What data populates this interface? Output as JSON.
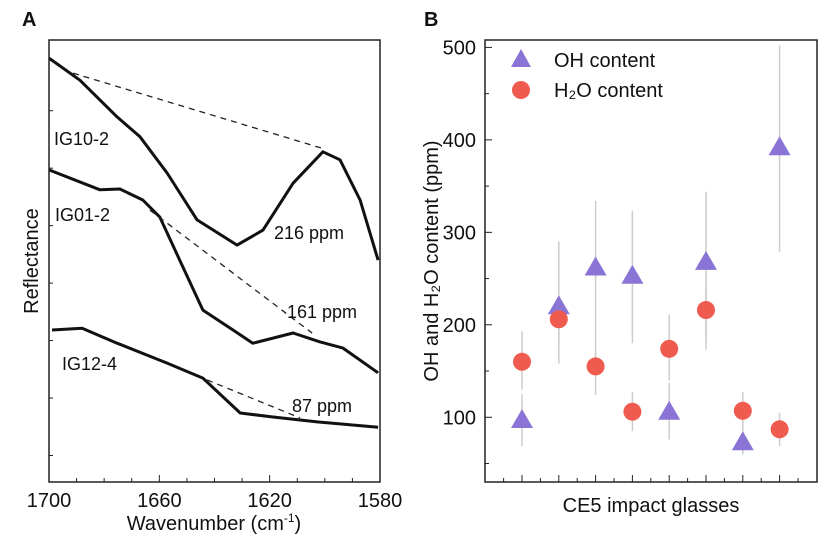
{
  "chart_data": [
    {
      "panel_label": "A",
      "type": "line",
      "title": "",
      "xlabel": "Wavenumber (cm",
      "xlabel_sup": "-1",
      "xlabel_end": ")",
      "ylabel": "Reflectance",
      "xlim": [
        1700,
        1580
      ],
      "ylim": [
        0,
        100
      ],
      "xticks": [
        1700,
        1660,
        1620,
        1580
      ],
      "xtick_labels": [
        "1700",
        "1660",
        "1620",
        "1580"
      ],
      "series": [
        {
          "name": "IG10-2",
          "annotation": "216 ppm",
          "x": [
            1700,
            1688.8,
            1675.3,
            1667,
            1657.2,
            1646.3,
            1631.8,
            1622.4,
            1611.5,
            1600.7,
            1594.5,
            1587.2,
            1580.7
          ],
          "y": [
            95.9,
            90.9,
            82.6,
            78.1,
            69.9,
            59.3,
            53.6,
            57.0,
            67.6,
            74.7,
            72.9,
            63.8,
            50.2
          ],
          "baseline": {
            "x": [
              1691.3,
              1599.9
            ],
            "y": [
              92.5,
              75.3
            ]
          }
        },
        {
          "name": "IG01-2",
          "annotation": "161 ppm",
          "x": [
            1700,
            1681.5,
            1674.3,
            1666,
            1659.8,
            1652.6,
            1644.2,
            1633.3,
            1626.1,
            1611.5,
            1601.7,
            1593.4,
            1580.7
          ],
          "y": [
            70.6,
            66.1,
            66.3,
            63.8,
            59.9,
            50.2,
            38.9,
            34.4,
            31.4,
            33.7,
            31.7,
            30.3,
            24.7
          ],
          "baseline": {
            "x": [
              1663.4,
              1604.6
            ],
            "y": [
              61.5,
              33.7
            ]
          }
        },
        {
          "name": "IG12-4",
          "annotation": "87 ppm",
          "x": [
            1698.9,
            1688,
            1675.3,
            1657.2,
            1644.2,
            1630.7,
            1618.8,
            1602.8,
            1580.7
          ],
          "y": [
            34.4,
            34.8,
            31.4,
            26.9,
            23.5,
            15.6,
            14.7,
            13.6,
            12.4
          ],
          "baseline": {
            "x": [
              1642.7,
              1609
            ],
            "y": [
              23.1,
              14.5
            ]
          }
        }
      ]
    },
    {
      "panel_label": "B",
      "type": "scatter",
      "title": "",
      "xlabel": "CE5 impact glasses",
      "ylabel": "OH and H₂O content (ppm)",
      "ylim": [
        30,
        508
      ],
      "yticks": [
        100,
        200,
        300,
        400,
        500
      ],
      "ytick_labels": [
        "100",
        "200",
        "300",
        "400",
        "500"
      ],
      "categories": [
        1,
        2,
        3,
        4,
        5,
        6,
        7,
        8
      ],
      "legend_position": "top-left",
      "series": [
        {
          "name": "OH content",
          "marker": "triangle",
          "color": "#8a74d6",
          "values": [
            97,
            220,
            262,
            253,
            106,
            268,
            73,
            392
          ],
          "err_low": [
            69,
            158,
            190,
            180,
            76,
            173,
            60,
            279
          ],
          "err_high": [
            125,
            290,
            334,
            323,
            137,
            344,
            95,
            502
          ]
        },
        {
          "name": "H₂O content",
          "marker": "circle",
          "color": "#ef5b4f",
          "values": [
            160,
            206,
            155,
            106,
            174,
            216,
            107,
            87
          ],
          "err_low": [
            130,
            180,
            124,
            85,
            140,
            190,
            92,
            69
          ],
          "err_high": [
            193,
            230,
            190,
            127,
            211,
            240,
            127,
            105
          ]
        }
      ],
      "errorbar_color": "#cccccc"
    }
  ]
}
